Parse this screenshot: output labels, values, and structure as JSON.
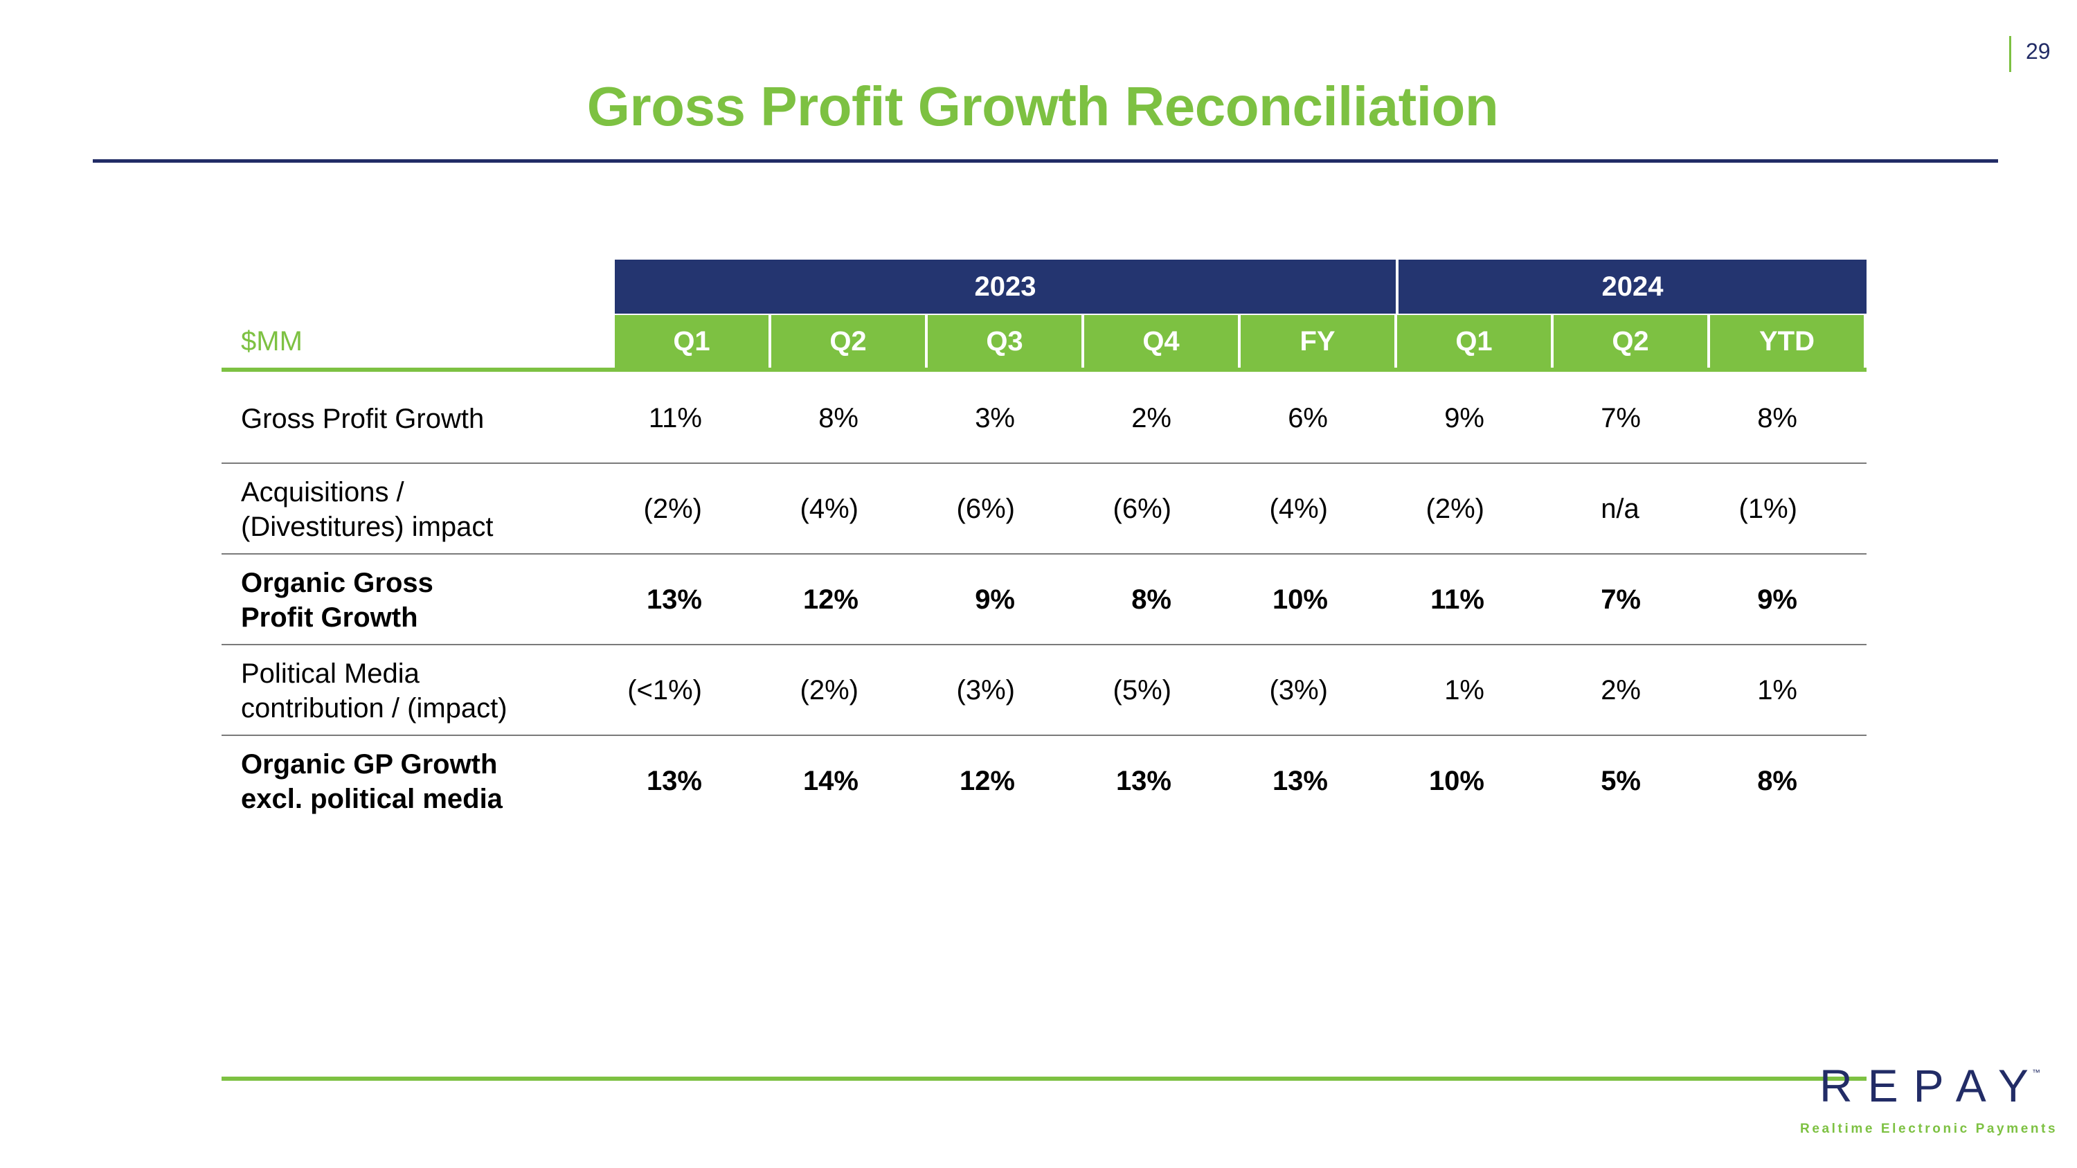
{
  "page_number": "29",
  "title": "Gross Profit Growth Reconciliation",
  "table": {
    "unit_label": "$MM",
    "years": [
      {
        "label": "2023"
      },
      {
        "label": "2024"
      }
    ],
    "columns": [
      "Q1",
      "Q2",
      "Q3",
      "Q4",
      "FY",
      "Q1",
      "Q2",
      "YTD"
    ],
    "rows": [
      {
        "label": "Gross Profit Growth",
        "bold": false,
        "values": [
          "11%",
          "8%",
          "3%",
          "2%",
          "6%",
          "9%",
          "7%",
          "8%"
        ]
      },
      {
        "label": "Acquisitions /\n(Divestitures) impact",
        "bold": false,
        "values": [
          "(2%)",
          "(4%)",
          "(6%)",
          "(6%)",
          "(4%)",
          "(2%)",
          "n/a",
          "(1%)"
        ]
      },
      {
        "label": "Organic Gross\nProfit Growth",
        "bold": true,
        "values": [
          "13%",
          "12%",
          "9%",
          "8%",
          "10%",
          "11%",
          "7%",
          "9%"
        ]
      },
      {
        "label": "Political Media\ncontribution / (impact)",
        "bold": false,
        "values": [
          "(<1%)",
          "(2%)",
          "(3%)",
          "(5%)",
          "(3%)",
          "1%",
          "2%",
          "1%"
        ]
      },
      {
        "label": "Organic GP Growth\nexcl. political media",
        "bold": true,
        "values": [
          "13%",
          "14%",
          "12%",
          "13%",
          "13%",
          "10%",
          "5%",
          "8%"
        ]
      }
    ]
  },
  "logo": {
    "word": "REPAY",
    "tm": "™",
    "tagline": "Realtime Electronic Payments",
    "colors": {
      "navy": "#222c66",
      "green": "#7dc142"
    }
  },
  "colors": {
    "accent_green": "#7dc142",
    "navy": "#243570"
  }
}
